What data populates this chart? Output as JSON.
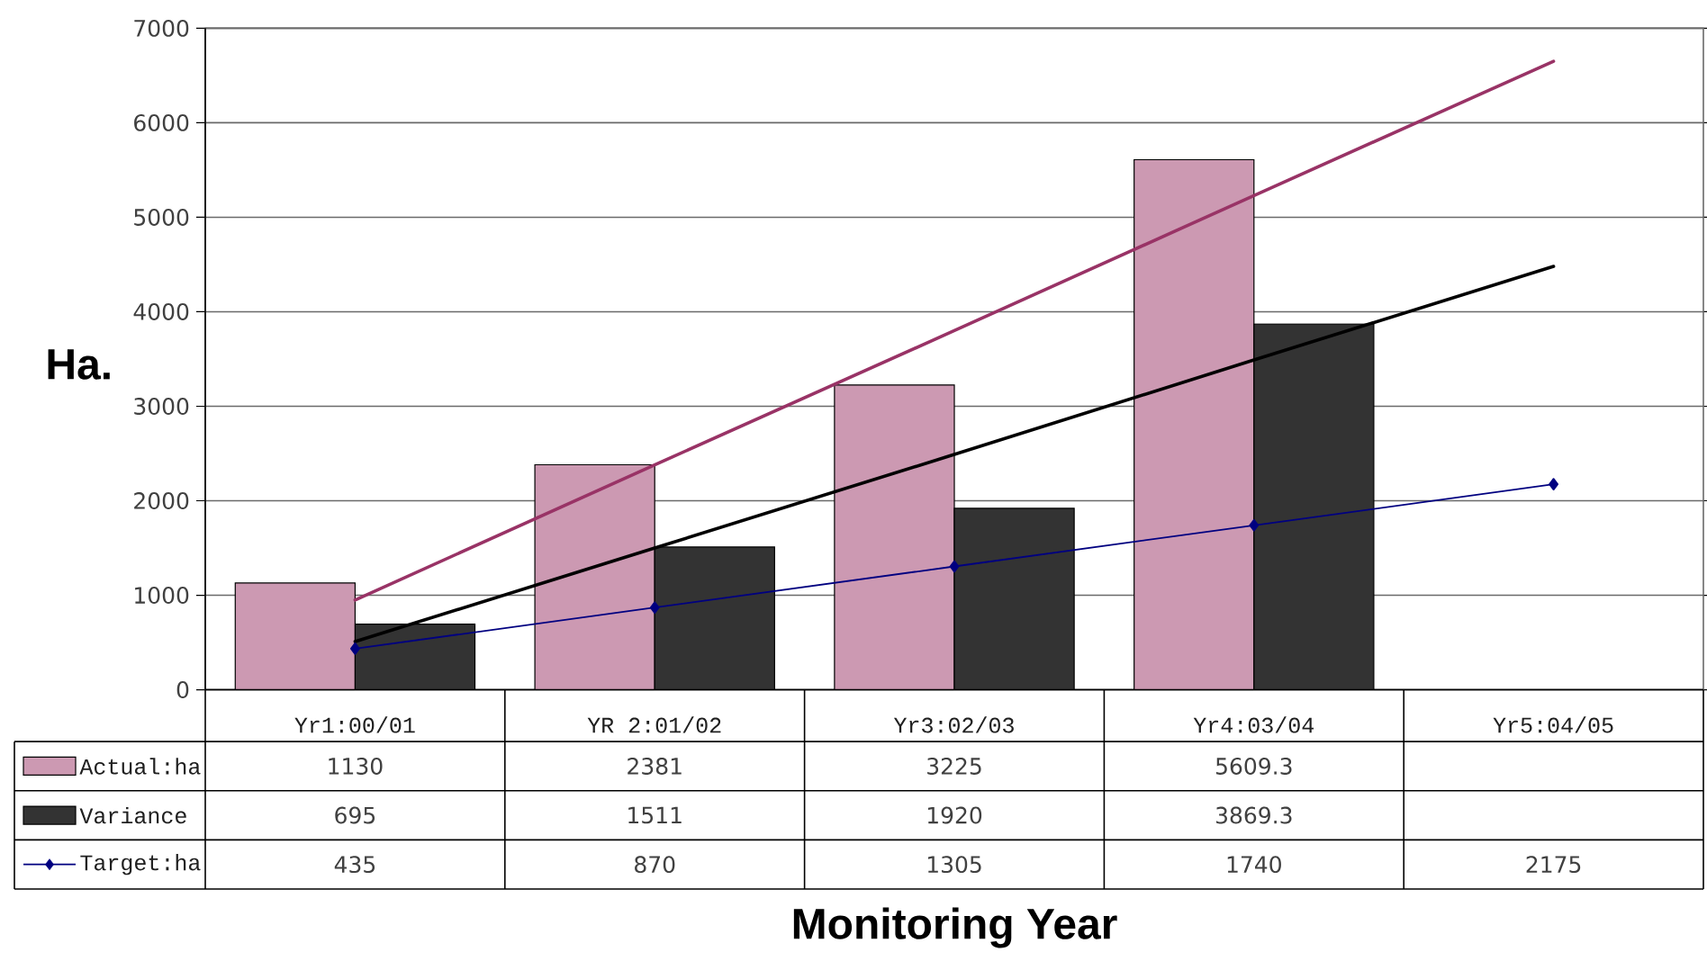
{
  "chart_data": {
    "type": "bar",
    "xlabel": "Monitoring Year",
    "ylabel": "Ha.",
    "categories": [
      "Yr1:00/01",
      "YR 2:01/02",
      "Yr3:02/03",
      "Yr4:03/04",
      "Yr5:04/05"
    ],
    "series": [
      {
        "name": "Actual:ha",
        "color": "#cc99b2",
        "values": [
          1130,
          2381,
          3225,
          5609.3,
          null
        ],
        "value_labels": [
          "1130",
          "2381",
          "3225",
          "5609.3",
          null
        ]
      },
      {
        "name": "Variance",
        "color": "#333333",
        "values": [
          695,
          1511,
          1920,
          3869.3,
          null
        ],
        "value_labels": [
          "695",
          "1511",
          "1920",
          "3869.3",
          null
        ]
      },
      {
        "name": "Target:ha",
        "type": "line",
        "color": "#000080",
        "marker": "diamond",
        "values": [
          435,
          870,
          1305,
          1740,
          2175
        ],
        "value_labels": [
          "435",
          "870",
          "1305",
          "1740",
          "2175"
        ]
      },
      {
        "type": "line",
        "color": "#993366",
        "values": [
          950,
          2380,
          3800,
          5230,
          6650
        ]
      },
      {
        "type": "line",
        "color": "#000000",
        "values": [
          510,
          1500,
          2490,
          3490,
          4480
        ]
      }
    ],
    "ylim": [
      0,
      7000
    ],
    "yticks": [
      0,
      1000,
      2000,
      3000,
      4000,
      5000,
      6000,
      7000
    ],
    "grid": "y",
    "legend": "bottom"
  }
}
